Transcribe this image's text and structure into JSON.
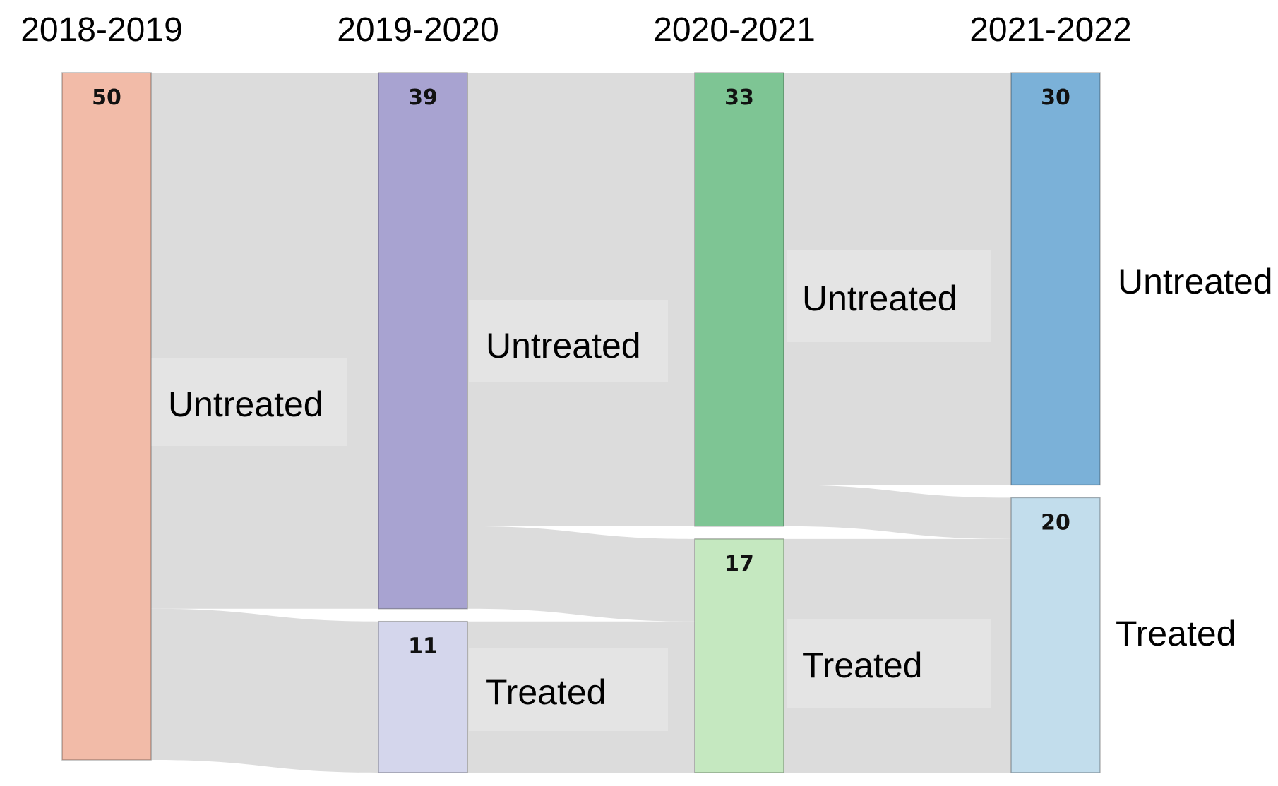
{
  "columns": [
    "2018-2019",
    "2019-2020",
    "2020-2021",
    "2021-2022"
  ],
  "nodes": [
    {
      "id": "c0_untreated",
      "column": 0,
      "value": 50,
      "label": "50",
      "color": "#f2bba8"
    },
    {
      "id": "c1_untreated",
      "column": 1,
      "value": 39,
      "label": "39",
      "color": "#a8a3d1"
    },
    {
      "id": "c1_treated",
      "column": 1,
      "value": 11,
      "label": "11",
      "color": "#d4d6ec"
    },
    {
      "id": "c2_untreated",
      "column": 2,
      "value": 33,
      "label": "33",
      "color": "#7ec594"
    },
    {
      "id": "c2_treated",
      "column": 2,
      "value": 17,
      "label": "17",
      "color": "#c5e8c0"
    },
    {
      "id": "c3_untreated",
      "column": 3,
      "value": 30,
      "label": "30",
      "color": "#7bb1d8"
    },
    {
      "id": "c3_treated",
      "column": 3,
      "value": 20,
      "label": "20",
      "color": "#c2ddec"
    }
  ],
  "links": [
    {
      "source": "c0_untreated",
      "target": "c1_untreated",
      "value": 39
    },
    {
      "source": "c0_untreated",
      "target": "c1_treated",
      "value": 11
    },
    {
      "source": "c1_untreated",
      "target": "c2_untreated",
      "value": 33
    },
    {
      "source": "c1_untreated",
      "target": "c2_treated",
      "value": 6
    },
    {
      "source": "c1_treated",
      "target": "c2_treated",
      "value": 11
    },
    {
      "source": "c2_untreated",
      "target": "c3_untreated",
      "value": 30
    },
    {
      "source": "c2_untreated",
      "target": "c3_treated",
      "value": 3
    },
    {
      "source": "c2_treated",
      "target": "c3_treated",
      "value": 17
    }
  ],
  "labels": {
    "untreated": "Untreated",
    "treated": "Treated"
  },
  "colors": {
    "link": "#dcdcdc",
    "label_background": "#e4e4e4"
  }
}
